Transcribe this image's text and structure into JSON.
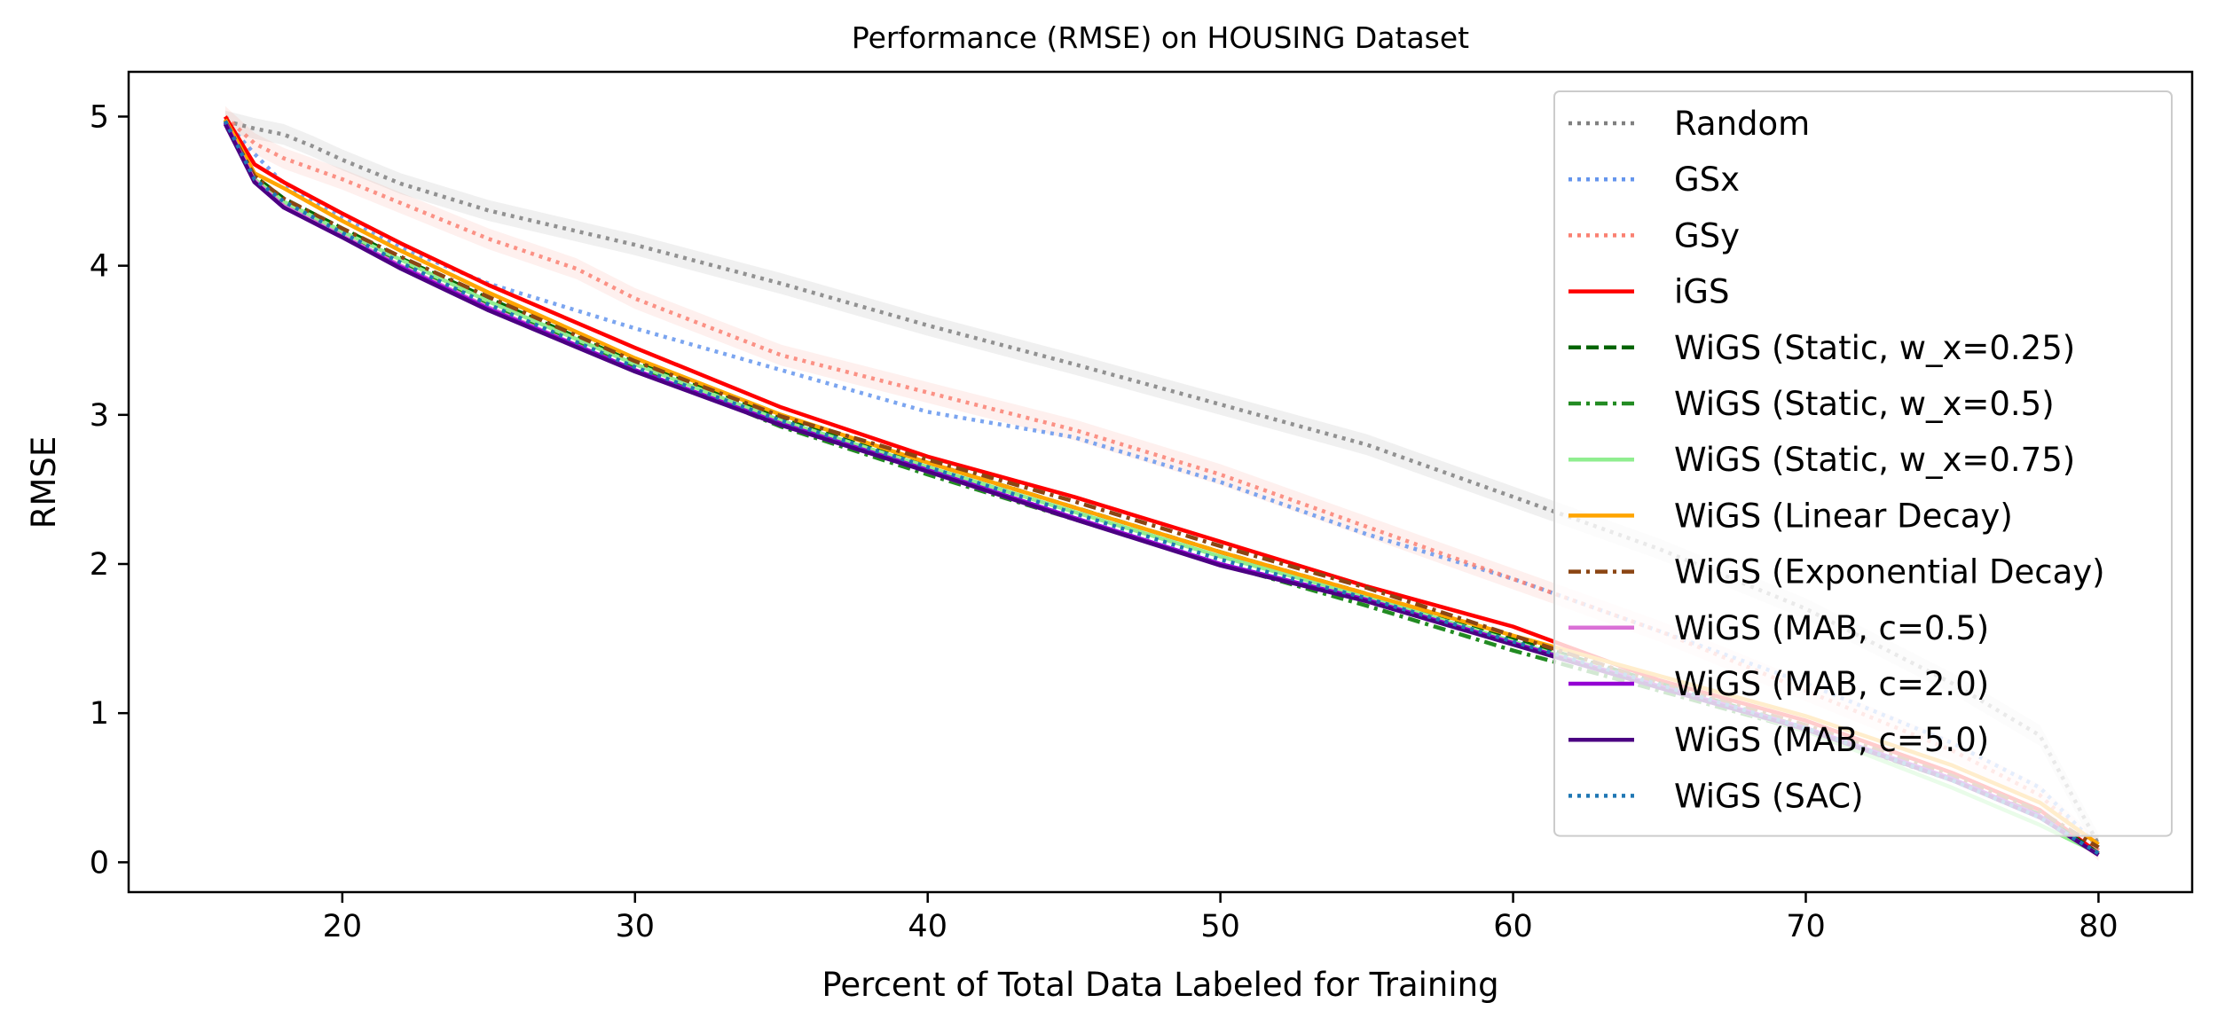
{
  "chart_data": {
    "type": "line",
    "title": "Performance (RMSE) on HOUSING Dataset",
    "xlabel": "Percent of Total Data Labeled for Training",
    "ylabel": "RMSE",
    "xlim": [
      12.7,
      83.2
    ],
    "ylim": [
      -0.2,
      5.3
    ],
    "xticks": [
      20,
      30,
      40,
      50,
      60,
      70,
      80
    ],
    "yticks": [
      0,
      1,
      2,
      3,
      4,
      5
    ],
    "grid": false,
    "legend_position": "top-right",
    "series": [
      {
        "name": "Random",
        "color": "#808080",
        "dash": "dotted",
        "band": true,
        "x": [
          16,
          17,
          18,
          19,
          20,
          22,
          25,
          30,
          35,
          40,
          45,
          50,
          55,
          60,
          65,
          70,
          75,
          78,
          80
        ],
        "y": [
          4.97,
          4.92,
          4.88,
          4.8,
          4.71,
          4.55,
          4.37,
          4.14,
          3.88,
          3.6,
          3.34,
          3.07,
          2.8,
          2.45,
          2.1,
          1.7,
          1.2,
          0.85,
          0.12
        ]
      },
      {
        "name": "GSx",
        "color": "#6495ED",
        "dash": "dotted",
        "band": false,
        "x": [
          16,
          17,
          18,
          20,
          22,
          25,
          30,
          35,
          40,
          45,
          50,
          55,
          60,
          65,
          70,
          75,
          78,
          80
        ],
        "y": [
          4.97,
          4.75,
          4.55,
          4.32,
          4.12,
          3.88,
          3.58,
          3.3,
          3.02,
          2.85,
          2.55,
          2.2,
          1.9,
          1.55,
          1.2,
          0.8,
          0.5,
          0.1
        ]
      },
      {
        "name": "GSy",
        "color": "#FA8072",
        "dash": "dotted",
        "band": true,
        "x": [
          16,
          17,
          18,
          20,
          22,
          25,
          28,
          30,
          35,
          40,
          45,
          50,
          55,
          60,
          65,
          70,
          75,
          78,
          80
        ],
        "y": [
          5.0,
          4.82,
          4.72,
          4.58,
          4.42,
          4.18,
          3.98,
          3.78,
          3.4,
          3.15,
          2.9,
          2.6,
          2.25,
          1.9,
          1.55,
          1.15,
          0.75,
          0.45,
          0.08
        ]
      },
      {
        "name": "iGS",
        "color": "#FF0000",
        "dash": "solid",
        "band": false,
        "x": [
          16,
          17,
          18,
          20,
          22,
          25,
          30,
          35,
          40,
          45,
          50,
          55,
          60,
          65,
          70,
          75,
          78,
          80
        ],
        "y": [
          5.0,
          4.68,
          4.56,
          4.35,
          4.15,
          3.87,
          3.45,
          3.05,
          2.72,
          2.45,
          2.15,
          1.85,
          1.58,
          1.22,
          0.95,
          0.6,
          0.35,
          0.06
        ]
      },
      {
        "name": "WiGS (Static, w_x=0.25)",
        "color": "#006400",
        "dash": "dashed",
        "band": false,
        "x": [
          16,
          17,
          18,
          20,
          22,
          25,
          30,
          35,
          40,
          45,
          50,
          55,
          60,
          65,
          70,
          75,
          78,
          80
        ],
        "y": [
          4.98,
          4.6,
          4.45,
          4.25,
          4.05,
          3.78,
          3.35,
          2.98,
          2.68,
          2.38,
          2.08,
          1.8,
          1.5,
          1.2,
          0.9,
          0.55,
          0.32,
          0.06
        ]
      },
      {
        "name": "WiGS (Static, w_x=0.5)",
        "color": "#228B22",
        "dash": "dashdot",
        "band": false,
        "x": [
          16,
          17,
          18,
          20,
          22,
          25,
          30,
          35,
          40,
          45,
          50,
          55,
          60,
          65,
          70,
          75,
          78,
          80
        ],
        "y": [
          4.97,
          4.58,
          4.42,
          4.22,
          4.03,
          3.75,
          3.32,
          2.92,
          2.6,
          2.3,
          2.0,
          1.72,
          1.42,
          1.15,
          0.88,
          0.55,
          0.3,
          0.05
        ]
      },
      {
        "name": "WiGS (Static, w_x=0.75)",
        "color": "#90EE90",
        "dash": "solid",
        "band": false,
        "x": [
          16,
          17,
          18,
          20,
          22,
          25,
          30,
          35,
          40,
          45,
          50,
          55,
          60,
          65,
          70,
          75,
          78,
          80
        ],
        "y": [
          4.97,
          4.58,
          4.43,
          4.23,
          4.04,
          3.76,
          3.34,
          2.96,
          2.65,
          2.35,
          2.05,
          1.78,
          1.48,
          1.18,
          0.88,
          0.5,
          0.25,
          0.06
        ]
      },
      {
        "name": "WiGS (Linear Decay)",
        "color": "#FFA500",
        "dash": "solid",
        "band": false,
        "x": [
          16,
          17,
          18,
          20,
          22,
          25,
          30,
          35,
          40,
          45,
          50,
          55,
          60,
          65,
          70,
          75,
          78,
          80
        ],
        "y": [
          4.98,
          4.62,
          4.52,
          4.3,
          4.1,
          3.82,
          3.38,
          3.0,
          2.68,
          2.38,
          2.08,
          1.8,
          1.52,
          1.25,
          0.98,
          0.65,
          0.4,
          0.12
        ]
      },
      {
        "name": "WiGS (Exponential Decay)",
        "color": "#8B4513",
        "dash": "dashdot",
        "band": false,
        "x": [
          16,
          17,
          18,
          20,
          22,
          25,
          30,
          35,
          40,
          45,
          50,
          55,
          60,
          65,
          70,
          75,
          78,
          80
        ],
        "y": [
          4.97,
          4.6,
          4.45,
          4.25,
          4.06,
          3.79,
          3.36,
          2.99,
          2.7,
          2.42,
          2.12,
          1.84,
          1.52,
          1.2,
          0.92,
          0.58,
          0.34,
          0.1
        ]
      },
      {
        "name": "WiGS (MAB, c=0.5)",
        "color": "#DA70D6",
        "dash": "solid",
        "band": false,
        "x": [
          16,
          17,
          18,
          20,
          22,
          25,
          30,
          35,
          40,
          45,
          50,
          55,
          60,
          65,
          70,
          75,
          78,
          80
        ],
        "y": [
          4.96,
          4.57,
          4.4,
          4.2,
          4.0,
          3.72,
          3.3,
          2.94,
          2.62,
          2.3,
          2.0,
          1.75,
          1.46,
          1.18,
          0.9,
          0.55,
          0.3,
          0.05
        ]
      },
      {
        "name": "WiGS (MAB, c=2.0)",
        "color": "#9400D3",
        "dash": "solid",
        "band": false,
        "x": [
          16,
          17,
          18,
          20,
          22,
          25,
          30,
          35,
          40,
          45,
          50,
          55,
          60,
          65,
          70,
          75,
          78,
          80
        ],
        "y": [
          4.96,
          4.56,
          4.39,
          4.19,
          3.99,
          3.71,
          3.3,
          2.94,
          2.63,
          2.31,
          2.0,
          1.76,
          1.47,
          1.18,
          0.9,
          0.56,
          0.31,
          0.05
        ]
      },
      {
        "name": "WiGS (MAB, c=5.0)",
        "color": "#4B0082",
        "dash": "solid",
        "band": false,
        "x": [
          16,
          17,
          18,
          20,
          22,
          25,
          30,
          35,
          40,
          45,
          50,
          55,
          60,
          65,
          70,
          75,
          78,
          80
        ],
        "y": [
          4.95,
          4.56,
          4.39,
          4.19,
          3.98,
          3.7,
          3.29,
          2.93,
          2.62,
          2.3,
          1.99,
          1.75,
          1.46,
          1.17,
          0.89,
          0.55,
          0.3,
          0.05
        ]
      },
      {
        "name": "WiGS (SAC)",
        "color": "#1F77B4",
        "dash": "dotted",
        "band": false,
        "x": [
          16,
          17,
          18,
          20,
          22,
          25,
          30,
          35,
          40,
          45,
          50,
          55,
          60,
          65,
          70,
          75,
          78,
          80
        ],
        "y": [
          4.97,
          4.58,
          4.43,
          4.22,
          4.02,
          3.74,
          3.32,
          2.96,
          2.65,
          2.34,
          2.03,
          1.77,
          1.48,
          1.19,
          0.9,
          0.55,
          0.3,
          0.06
        ]
      }
    ]
  }
}
